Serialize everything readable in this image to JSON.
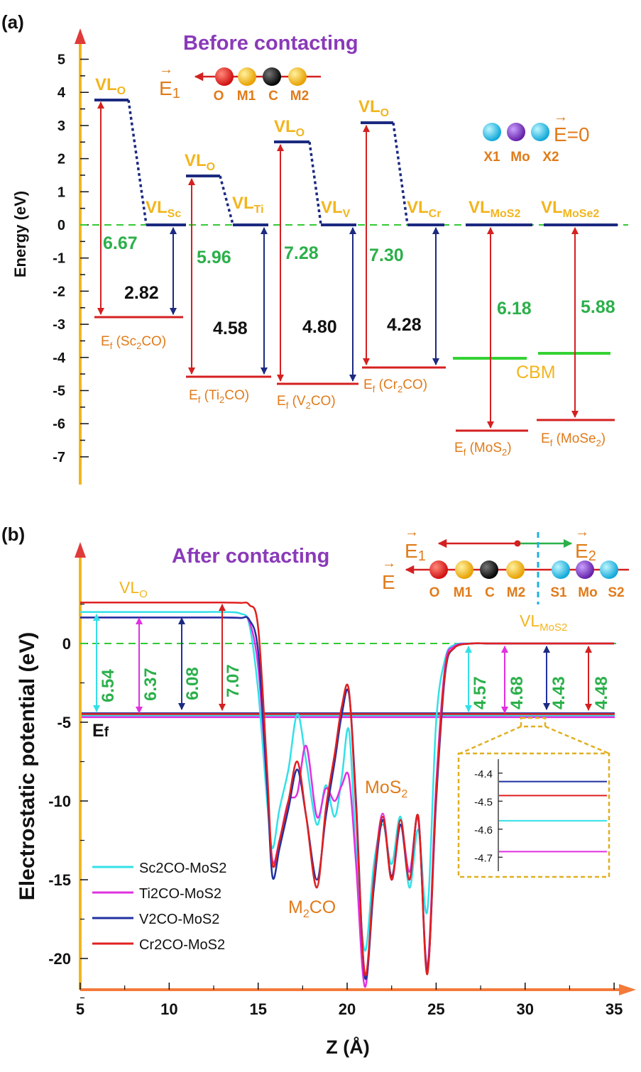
{
  "panel_a": {
    "panel_label": "(a)",
    "heading": "Before contacting",
    "legend_field": "E1",
    "legend_atoms": [
      "O",
      "M1",
      "C",
      "M2"
    ],
    "legend_zero_field": "E=0",
    "legend_atoms2": [
      "X1",
      "Mo",
      "X2"
    ],
    "ylabel": "Energy (eV)",
    "cbm_label": "CBM",
    "vl_o": "VLo",
    "vl_sc": "VLSc",
    "vl_ti": "VLTi",
    "vl_v": "VLV",
    "vl_cr": "VLCr",
    "vl_mos2": "VLMoS2",
    "vl_mose2": "VLMoSe2",
    "ef_sc2co": "Ef (Sc2CO)",
    "ef_ti2co": "Ef (Ti2CO)",
    "ef_v2co": "Ef (V2CO)",
    "ef_cr2co": "Ef (Cr2CO)",
    "ef_mos2": "Ef (MoS2)",
    "ef_mose2": "Ef (MoSe2)"
  },
  "panel_b": {
    "panel_label": "(b)",
    "heading": "After contacting",
    "legend_fields": [
      "E1",
      "E2",
      "E"
    ],
    "legend_atoms": [
      "O",
      "M1",
      "C",
      "M2",
      "S1",
      "Mo",
      "S2"
    ],
    "ylabel": "Electrostatic potential (eV)",
    "xlabel": "Z (Å)",
    "vl_o": "VLo",
    "vl_mos2": "VLMoS2",
    "ef": "Ef",
    "m2co": "M2CO",
    "mos2": "MoS2"
  },
  "chart_data": [
    {
      "type": "energy-level-diagram",
      "ylabel": "Energy (eV)",
      "ylim": [
        -7,
        5
      ],
      "yticks": [
        5,
        4,
        3,
        2,
        1,
        0,
        -1,
        -2,
        -3,
        -4,
        -5,
        -6,
        -7
      ],
      "systems": [
        {
          "name": "Sc2CO",
          "vl_o": 3.75,
          "vl_m": 0.0,
          "ef": -2.82,
          "work_function_o": 6.67,
          "work_function_m": 2.82
        },
        {
          "name": "Ti2CO",
          "vl_o": 1.38,
          "vl_m": 0.0,
          "ef": -4.58,
          "work_function_o": 5.96,
          "work_function_m": 4.58
        },
        {
          "name": "V2CO",
          "vl_o": 2.48,
          "vl_m": 0.0,
          "ef": -4.8,
          "work_function_o": 7.28,
          "work_function_m": 4.8
        },
        {
          "name": "Cr2CO",
          "vl_o": 3.02,
          "vl_m": 0.0,
          "ef": -4.28,
          "work_function_o": 7.3,
          "work_function_m": 4.28
        },
        {
          "name": "MoS2",
          "vl": 0.0,
          "ef": -6.18,
          "cbm": -4.0,
          "work_function": 6.18
        },
        {
          "name": "MoSe2",
          "vl": 0.0,
          "ef": -5.88,
          "cbm": -3.85,
          "work_function": 5.88
        }
      ],
      "value_labels": [
        "6.67",
        "2.82",
        "5.96",
        "4.58",
        "7.28",
        "4.80",
        "7.30",
        "4.28",
        "6.18",
        "5.88"
      ]
    },
    {
      "type": "line",
      "xlabel": "Z (Å)",
      "ylabel": "Electrostatic potential (eV)",
      "xlim": [
        5,
        35
      ],
      "ylim": [
        -22,
        3.5
      ],
      "xticks": [
        5,
        10,
        15,
        20,
        25,
        30,
        35
      ],
      "yticks": [
        0,
        -5,
        -10,
        -15,
        -20
      ],
      "x": [
        5,
        6,
        7,
        8,
        9,
        10,
        11,
        12,
        13,
        14,
        14.5,
        15,
        15.5,
        15.8,
        16.2,
        16.7,
        17.2,
        17.7,
        18.3,
        18.8,
        19.3,
        19.7,
        20.1,
        20.5,
        21.0,
        21.5,
        22.0,
        22.5,
        23.0,
        23.5,
        24.0,
        24.5,
        25.0,
        25.5,
        26,
        27,
        28,
        30,
        32,
        35
      ],
      "series": [
        {
          "name": "Sc2CO-MoS2",
          "color": "#33e0e8",
          "vl_left": 2.0,
          "ef": -4.57,
          "work_function_left": 6.54,
          "work_function_right": 4.57,
          "y": [
            2.0,
            2.0,
            2.0,
            2.0,
            2.0,
            2.0,
            2.0,
            2.0,
            2.0,
            1.9,
            1.2,
            -3.0,
            -10.0,
            -13.0,
            -10.5,
            -8.0,
            -4.5,
            -7.5,
            -11.5,
            -9.0,
            -11.0,
            -8.5,
            -5.5,
            -13.0,
            -19.5,
            -14.0,
            -11.5,
            -14.0,
            -11.0,
            -15.5,
            -11.8,
            -17.0,
            -5.0,
            -1.0,
            -0.1,
            0.0,
            0.0,
            0.0,
            0.0,
            0.0
          ]
        },
        {
          "name": "Ti2CO-MoS2",
          "color": "#e030e0",
          "vl_left": 1.65,
          "ef": -4.68,
          "work_function_left": 6.37,
          "work_function_right": 4.68,
          "y": [
            1.65,
            1.65,
            1.65,
            1.65,
            1.65,
            1.65,
            1.65,
            1.65,
            1.65,
            1.62,
            1.4,
            -1.5,
            -9.0,
            -13.8,
            -12.5,
            -10.0,
            -9.5,
            -6.5,
            -11.0,
            -9.2,
            -10.0,
            -9.0,
            -8.5,
            -14.0,
            -21.8,
            -15.0,
            -10.8,
            -15.0,
            -11.5,
            -14.5,
            -11.2,
            -20.5,
            -9.0,
            -1.5,
            -0.2,
            0.0,
            0.0,
            0.0,
            0.0,
            0.0
          ]
        },
        {
          "name": "V2CO-MoS2",
          "color": "#2030a0",
          "vl_left": 1.65,
          "ef": -4.43,
          "work_function_left": 6.08,
          "work_function_right": 4.43,
          "y": [
            1.65,
            1.65,
            1.65,
            1.65,
            1.65,
            1.65,
            1.65,
            1.65,
            1.65,
            1.62,
            1.5,
            -0.5,
            -9.0,
            -14.8,
            -13.0,
            -10.5,
            -8.0,
            -11.0,
            -15.0,
            -11.0,
            -7.5,
            -4.5,
            -3.2,
            -10.0,
            -21.2,
            -15.5,
            -11.2,
            -14.8,
            -11.5,
            -15.0,
            -11.0,
            -20.8,
            -10.0,
            -2.0,
            -0.3,
            0.0,
            0.0,
            0.0,
            0.0,
            0.0
          ]
        },
        {
          "name": "Cr2CO-MoS2",
          "color": "#e02020",
          "vl_left": 2.6,
          "ef": -4.48,
          "work_function_left": 7.07,
          "work_function_right": 4.48,
          "y": [
            2.6,
            2.6,
            2.6,
            2.6,
            2.6,
            2.6,
            2.6,
            2.6,
            2.6,
            2.58,
            2.45,
            1.0,
            -8.0,
            -14.0,
            -12.5,
            -10.0,
            -7.5,
            -11.0,
            -15.5,
            -10.5,
            -7.0,
            -4.0,
            -3.0,
            -10.5,
            -21.0,
            -15.0,
            -11.0,
            -15.0,
            -11.2,
            -15.0,
            -11.0,
            -21.0,
            -9.5,
            -1.8,
            -0.3,
            0.0,
            0.0,
            0.0,
            0.0,
            0.0
          ]
        }
      ],
      "value_labels": [
        "6.54",
        "6.37",
        "6.08",
        "7.07",
        "4.57",
        "4.68",
        "4.43",
        "4.48"
      ],
      "inset": {
        "ylim": [
          -4.75,
          -4.35
        ],
        "yticks": [
          "-4.4",
          "-4.5",
          "-4.6",
          "-4.7"
        ],
        "levels": [
          {
            "name": "V2CO-MoS2",
            "color": "#2030a0",
            "value": -4.43
          },
          {
            "name": "Cr2CO-MoS2",
            "color": "#e02020",
            "value": -4.48
          },
          {
            "name": "Sc2CO-MoS2",
            "color": "#33e0e8",
            "value": -4.57
          },
          {
            "name": "Ti2CO-MoS2",
            "color": "#e030e0",
            "value": -4.68
          }
        ]
      }
    }
  ]
}
